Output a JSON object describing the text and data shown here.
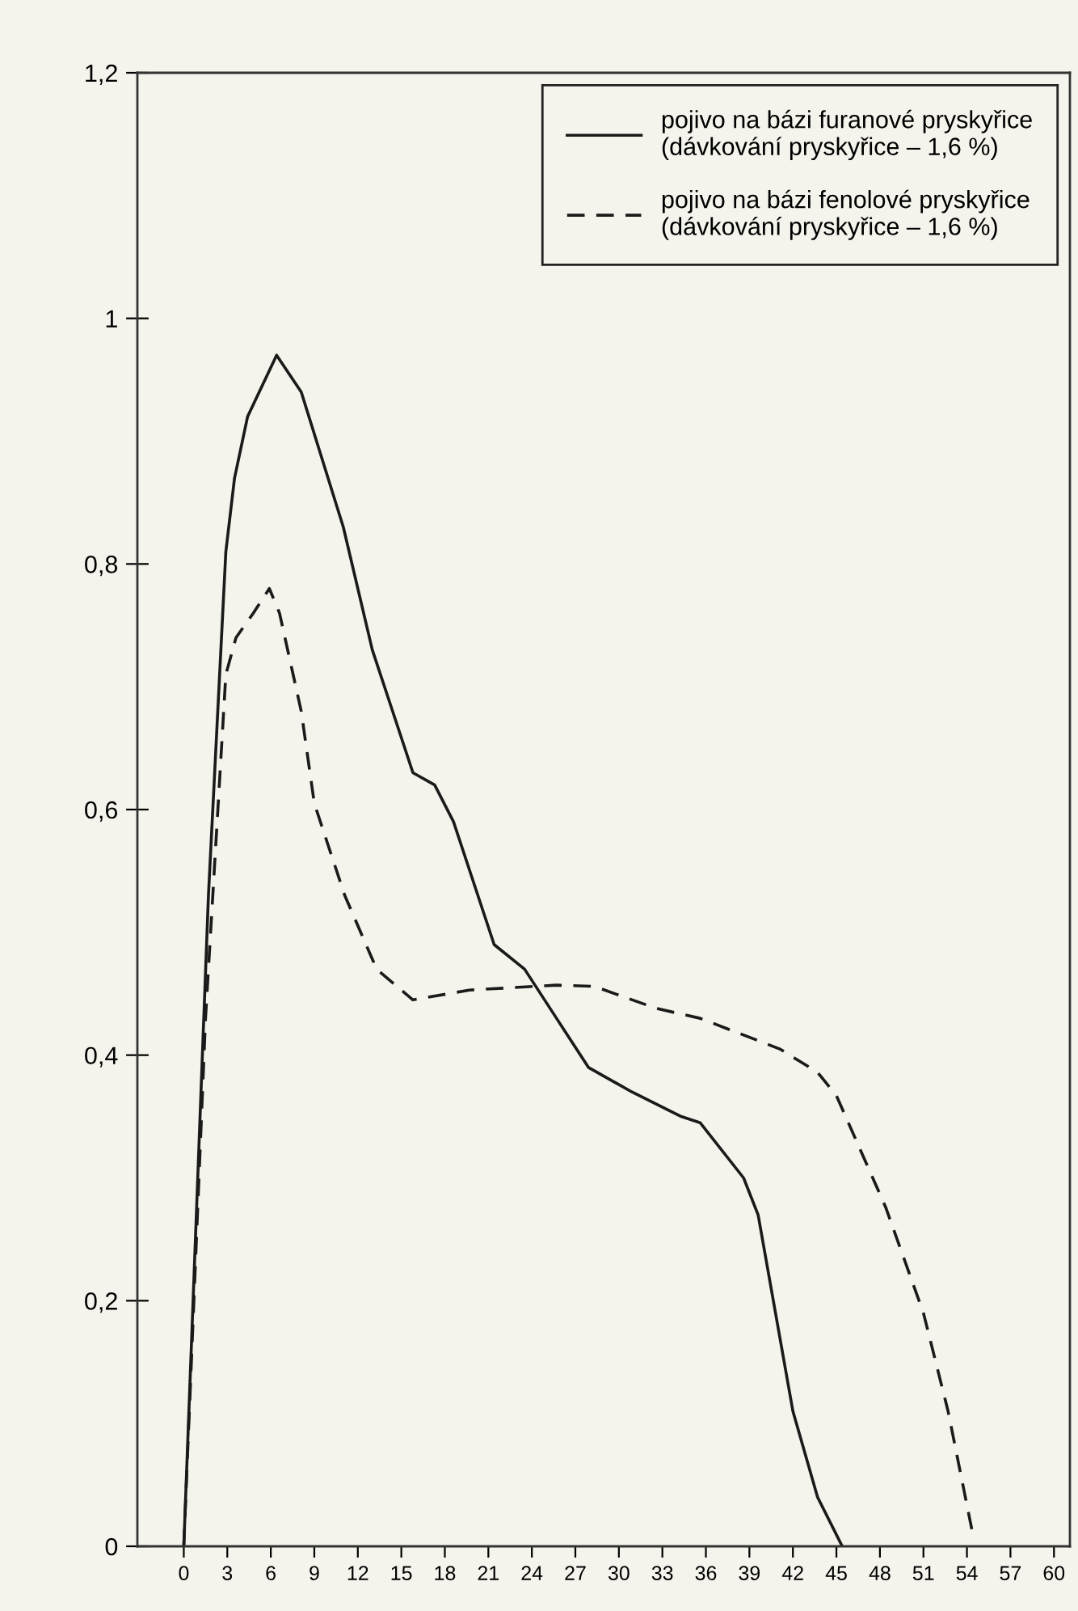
{
  "chart_data": {
    "type": "line",
    "xlim": [
      -3.2,
      61.1
    ],
    "ylim": [
      0,
      1.2
    ],
    "xticks": [
      0,
      3,
      6,
      9,
      12,
      15,
      18,
      21,
      24,
      27,
      30,
      33,
      36,
      39,
      42,
      45,
      48,
      51,
      54,
      57,
      60
    ],
    "yticks": [
      0,
      {
        "value": 0.2,
        "label": "0,2"
      },
      {
        "value": 0.4,
        "label": "0,4"
      },
      {
        "value": 0.6,
        "label": "0,6"
      },
      {
        "value": 0.8,
        "label": "0,8"
      },
      1,
      {
        "value": 1.2,
        "label": "1,2"
      }
    ],
    "grid": false,
    "legend": "top right",
    "marker": "none",
    "series": [
      {
        "name": "pojivo na bázi furanové pryskyřice\n(dávkování pryskyřice – 1,6 %)",
        "color": "#1a1a1a",
        "line_style": "solid",
        "x": [
          0,
          1.7,
          2.9,
          3.5,
          4.4,
          6.4,
          8.1,
          11.0,
          13.0,
          14.4,
          15.8,
          17.3,
          18.6,
          21.4,
          23.5,
          25.7,
          27.9,
          30.9,
          34.3,
          35.6,
          38.6,
          39.6,
          42.0,
          43.7,
          45.4
        ],
        "values": [
          0,
          0.53,
          0.81,
          0.87,
          0.92,
          0.97,
          0.94,
          0.83,
          0.73,
          0.68,
          0.63,
          0.62,
          0.59,
          0.49,
          0.47,
          0.43,
          0.39,
          0.37,
          0.35,
          0.345,
          0.3,
          0.27,
          0.11,
          0.04,
          0
        ]
      },
      {
        "name": "pojivo na bázi fenolové pryskyřice\n(dávkování pryskyřice – 1,6 %)",
        "color": "#1a1a1a",
        "line_style": "dashed",
        "x": [
          0,
          1.5,
          2.9,
          3.6,
          4.8,
          5.9,
          6.6,
          8.1,
          9.0,
          11.1,
          13.3,
          15.8,
          19.7,
          25.7,
          28.3,
          32.6,
          35.6,
          41.1,
          43.7,
          45.0,
          48.4,
          51.0,
          52.7,
          54.4
        ],
        "values": [
          0,
          0.43,
          0.71,
          0.74,
          0.76,
          0.78,
          0.76,
          0.68,
          0.605,
          0.53,
          0.47,
          0.445,
          0.453,
          0.457,
          0.456,
          0.438,
          0.43,
          0.405,
          0.386,
          0.367,
          0.276,
          0.19,
          0.11,
          0.01
        ]
      }
    ]
  }
}
